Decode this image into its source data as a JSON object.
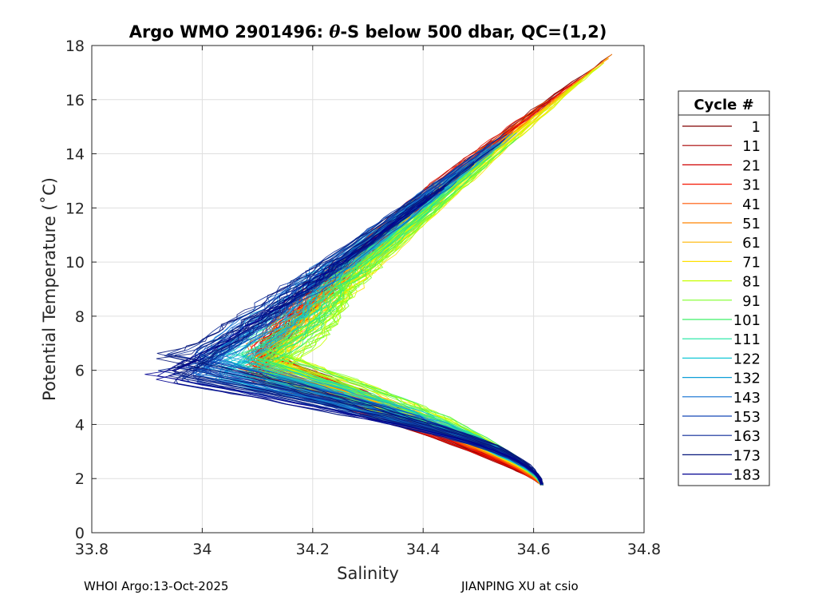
{
  "chart_data": {
    "type": "line",
    "title": "Argo WMO 2901496: θ-S below 500 dbar,  QC=(1,2)",
    "title_prefix": "Argo WMO 2901496: ",
    "title_symbol": "θ",
    "title_suffix": "-S below 500 dbar,  QC=(1,2)",
    "xlabel": "Salinity",
    "ylabel": "Potential Temperature (˚C)",
    "xlim": [
      33.8,
      34.8
    ],
    "ylim": [
      0,
      18
    ],
    "xticks": [
      "33.8",
      "34",
      "34.2",
      "34.4",
      "34.6",
      "34.8"
    ],
    "yticks": [
      "0",
      "2",
      "4",
      "6",
      "8",
      "10",
      "12",
      "14",
      "16",
      "18"
    ],
    "grid": true,
    "legend": {
      "title": "Cycle #",
      "position": "right-outside",
      "entries": [
        "1",
        "11",
        "21",
        "31",
        "41",
        "51",
        "61",
        "71",
        "81",
        "91",
        "101",
        "111",
        "122",
        "132",
        "143",
        "153",
        "163",
        "173",
        "183"
      ],
      "colors": [
        "#800000",
        "#a80000",
        "#cf0000",
        "#f51400",
        "#ff5500",
        "#ff8400",
        "#ffb500",
        "#ffe000",
        "#c8ff00",
        "#7fff2a",
        "#3ff067",
        "#1ae6a0",
        "#15c8d6",
        "#0e9fd8",
        "#0f6fd0",
        "#1448b8",
        "#0a2a98",
        "#05157a",
        "#000090"
      ]
    },
    "series_model": {
      "description": "Theta-S profiles below 500 dbar for cycles 1-183 (approximate traced envelope)",
      "deep_endpoint": {
        "salinity": 34.615,
        "theta": 1.75
      },
      "shallow_endpoint": {
        "salinity": 34.745,
        "theta": 17.7
      },
      "early_cycles_min_salinity_near_theta_6": 34.1,
      "late_cycles_min_salinity_near_theta_6": 33.92
    }
  },
  "footer": {
    "left": "WHOI Argo:13-Oct-2025",
    "right": "JIANPING XU at csio"
  }
}
